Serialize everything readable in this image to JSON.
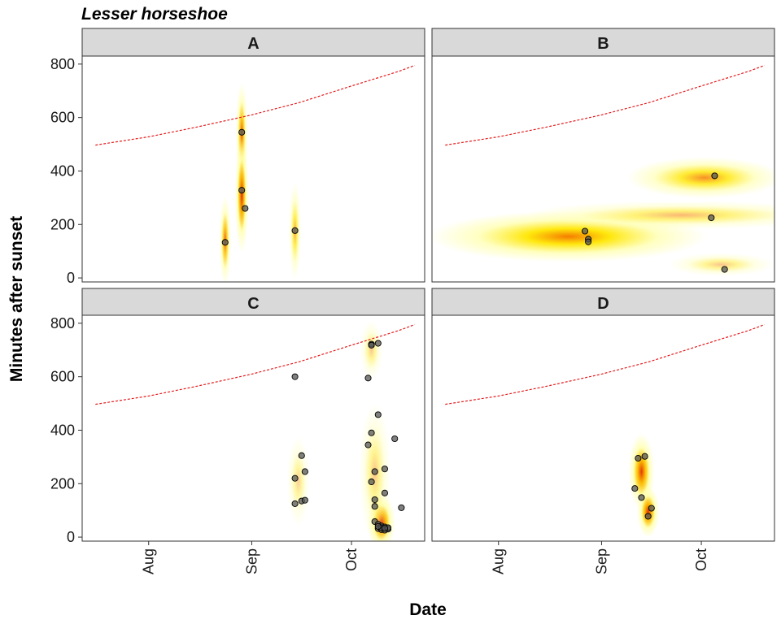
{
  "chart_data": {
    "type": "scatter",
    "title": "Lesser horseshoe",
    "xlabel": "Date",
    "ylabel": "Minutes after sunset",
    "layout": "facet-grid 2x2",
    "x_ticks": [
      "Aug",
      "Sep",
      "Oct"
    ],
    "y_ticks": [
      0,
      200,
      400,
      600,
      800
    ],
    "xlim": [
      "2020-07-12",
      "2020-10-23"
    ],
    "ylim": [
      -15,
      830
    ],
    "reference_line": {
      "style": "dashed",
      "color": "#e41a1c",
      "points": [
        {
          "x": "2020-07-16",
          "y": 497
        },
        {
          "x": "2020-08-01",
          "y": 528
        },
        {
          "x": "2020-08-15",
          "y": 563
        },
        {
          "x": "2020-09-01",
          "y": 610
        },
        {
          "x": "2020-09-15",
          "y": 655
        },
        {
          "x": "2020-10-01",
          "y": 718
        },
        {
          "x": "2020-10-15",
          "y": 772
        },
        {
          "x": "2020-10-20",
          "y": 795
        }
      ]
    },
    "panels": [
      {
        "label": "A",
        "points": [
          {
            "x": "2020-08-24",
            "y": 133
          },
          {
            "x": "2020-08-29",
            "y": 545
          },
          {
            "x": "2020-08-29",
            "y": 328
          },
          {
            "x": "2020-08-30",
            "y": 260
          },
          {
            "x": "2020-09-14",
            "y": 177
          }
        ],
        "density": [
          {
            "x": "2020-08-24",
            "y": 140,
            "sx": 0.7,
            "sy": 70,
            "w": 0.55
          },
          {
            "x": "2020-08-29",
            "y": 540,
            "sx": 0.7,
            "sy": 80,
            "w": 0.6
          },
          {
            "x": "2020-08-29",
            "y": 310,
            "sx": 0.8,
            "sy": 90,
            "w": 1.0
          },
          {
            "x": "2020-09-14",
            "y": 175,
            "sx": 0.7,
            "sy": 75,
            "w": 0.45
          }
        ]
      },
      {
        "label": "B",
        "points": [
          {
            "x": "2020-08-27",
            "y": 175
          },
          {
            "x": "2020-08-28",
            "y": 145
          },
          {
            "x": "2020-08-28",
            "y": 135
          },
          {
            "x": "2020-10-04",
            "y": 225
          },
          {
            "x": "2020-10-05",
            "y": 382
          },
          {
            "x": "2020-10-08",
            "y": 32
          }
        ],
        "density": [
          {
            "x": "2020-08-22",
            "y": 155,
            "sx": 16,
            "sy": 40,
            "w": 1.0
          },
          {
            "x": "2020-10-02",
            "y": 375,
            "sx": 9,
            "sy": 32,
            "w": 0.6
          },
          {
            "x": "2020-09-25",
            "y": 235,
            "sx": 18,
            "sy": 22,
            "w": 0.3
          },
          {
            "x": "2020-10-07",
            "y": 50,
            "sx": 6,
            "sy": 18,
            "w": 0.2
          }
        ]
      },
      {
        "label": "C",
        "points": [
          {
            "x": "2020-09-14",
            "y": 600
          },
          {
            "x": "2020-10-06",
            "y": 595
          },
          {
            "x": "2020-10-07",
            "y": 722
          },
          {
            "x": "2020-10-07",
            "y": 718
          },
          {
            "x": "2020-10-09",
            "y": 725
          },
          {
            "x": "2020-09-14",
            "y": 220
          },
          {
            "x": "2020-09-14",
            "y": 125
          },
          {
            "x": "2020-09-16",
            "y": 305
          },
          {
            "x": "2020-09-16",
            "y": 135
          },
          {
            "x": "2020-09-17",
            "y": 245
          },
          {
            "x": "2020-09-17",
            "y": 138
          },
          {
            "x": "2020-10-09",
            "y": 458
          },
          {
            "x": "2020-10-06",
            "y": 345
          },
          {
            "x": "2020-10-07",
            "y": 390
          },
          {
            "x": "2020-10-14",
            "y": 368
          },
          {
            "x": "2020-10-08",
            "y": 245
          },
          {
            "x": "2020-10-11",
            "y": 255
          },
          {
            "x": "2020-10-07",
            "y": 207
          },
          {
            "x": "2020-10-11",
            "y": 165
          },
          {
            "x": "2020-10-08",
            "y": 140
          },
          {
            "x": "2020-10-08",
            "y": 115
          },
          {
            "x": "2020-10-16",
            "y": 110
          },
          {
            "x": "2020-10-08",
            "y": 58
          },
          {
            "x": "2020-10-09",
            "y": 48
          },
          {
            "x": "2020-10-10",
            "y": 42
          },
          {
            "x": "2020-10-11",
            "y": 38
          },
          {
            "x": "2020-10-09",
            "y": 32
          },
          {
            "x": "2020-10-10",
            "y": 28
          },
          {
            "x": "2020-10-11",
            "y": 26
          },
          {
            "x": "2020-10-12",
            "y": 30
          },
          {
            "x": "2020-10-12",
            "y": 35
          },
          {
            "x": "2020-10-10",
            "y": 35
          },
          {
            "x": "2020-10-09",
            "y": 40
          },
          {
            "x": "2020-10-11",
            "y": 33
          }
        ],
        "density": [
          {
            "x": "2020-10-10",
            "y": 55,
            "sx": 1.6,
            "sy": 45,
            "w": 1.0
          },
          {
            "x": "2020-10-08",
            "y": 240,
            "sx": 1.8,
            "sy": 110,
            "w": 0.2
          },
          {
            "x": "2020-10-07",
            "y": 700,
            "sx": 1.3,
            "sy": 45,
            "w": 0.18
          },
          {
            "x": "2020-09-15",
            "y": 210,
            "sx": 1.3,
            "sy": 70,
            "w": 0.14
          }
        ]
      },
      {
        "label": "D",
        "points": [
          {
            "x": "2020-09-11",
            "y": 182
          },
          {
            "x": "2020-09-12",
            "y": 295
          },
          {
            "x": "2020-09-13",
            "y": 148
          },
          {
            "x": "2020-09-14",
            "y": 302
          },
          {
            "x": "2020-09-15",
            "y": 78
          },
          {
            "x": "2020-09-16",
            "y": 108
          }
        ],
        "density": [
          {
            "x": "2020-09-13",
            "y": 245,
            "sx": 1.5,
            "sy": 60,
            "w": 0.8
          },
          {
            "x": "2020-09-15",
            "y": 95,
            "sx": 1.3,
            "sy": 40,
            "w": 0.9
          }
        ]
      }
    ],
    "colors": {
      "strip_fill": "#d9d9d9",
      "reference_line": "#e41a1c",
      "density_low": "#ffffb2",
      "density_mid": "#ffe600",
      "density_high": "#f57c00",
      "density_peak": "#d7190e",
      "point_fill": "#555555"
    }
  }
}
